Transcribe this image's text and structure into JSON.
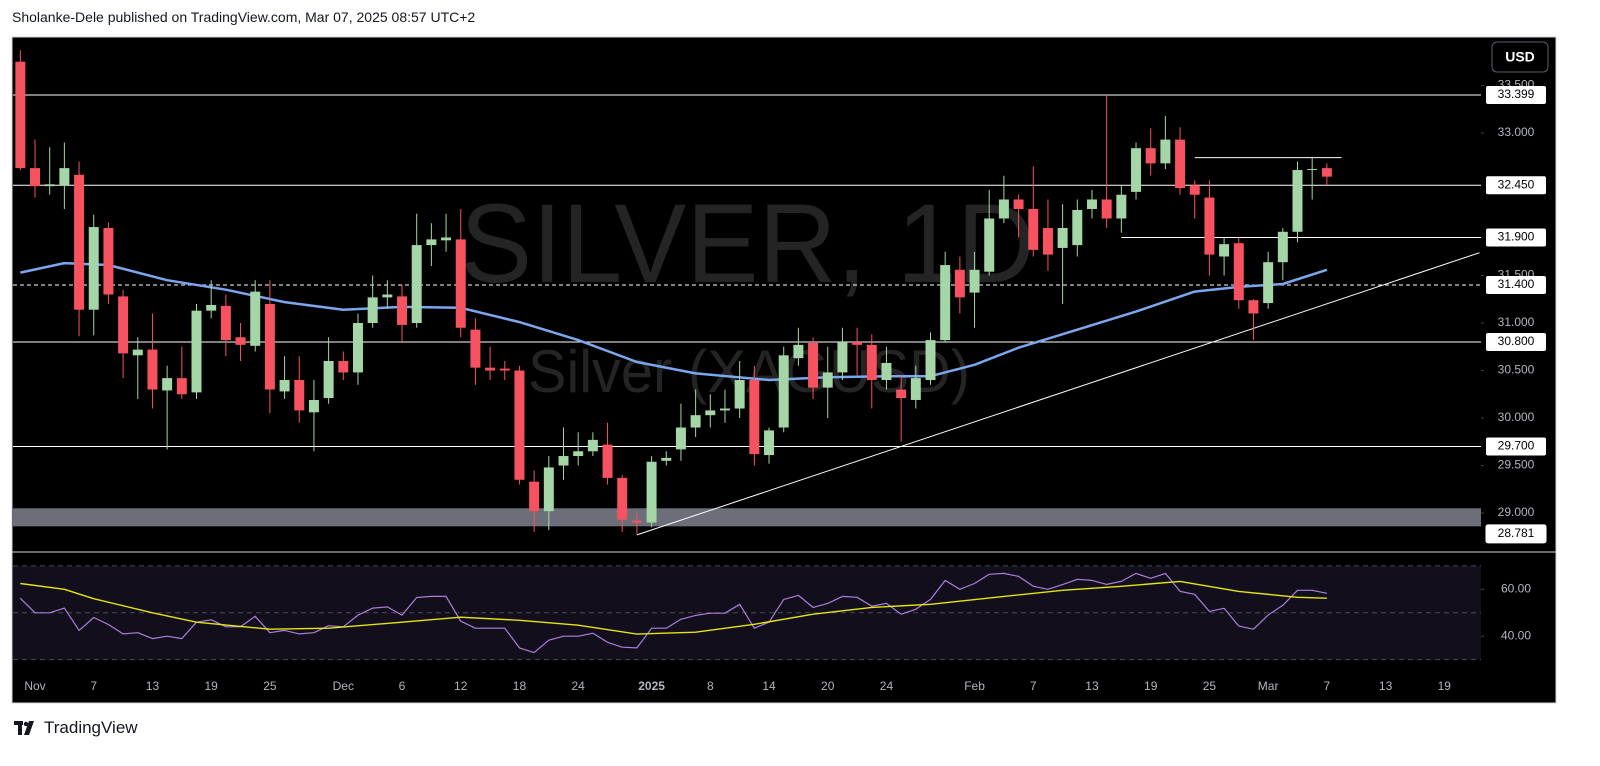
{
  "header": {
    "text": "Sholanke-Dele published on TradingView.com, Mar 07, 2025 08:57 UTC+2"
  },
  "footer": {
    "brand": "TradingView"
  },
  "currency_button": "USD",
  "chart_data": {
    "type": "candlestick",
    "watermark": {
      "title": "SILVER, 1D",
      "subtitle": "Silver (XAGUSD)"
    },
    "categories": [
      null,
      "Nov",
      null,
      null,
      null,
      "7",
      null,
      null,
      null,
      "13",
      null,
      null,
      null,
      "19",
      null,
      null,
      null,
      "25",
      null,
      null,
      null,
      null,
      "Dec",
      null,
      null,
      null,
      "6",
      null,
      null,
      null,
      "12",
      null,
      null,
      null,
      "18",
      null,
      null,
      null,
      "24",
      null,
      null,
      null,
      null,
      "2025",
      null,
      null,
      null,
      "8",
      null,
      null,
      null,
      "14",
      null,
      null,
      null,
      "20",
      null,
      null,
      null,
      "24",
      null,
      null,
      null,
      null,
      null,
      "Feb",
      null,
      null,
      null,
      "7",
      null,
      null,
      null,
      "13",
      null,
      null,
      null,
      "19",
      null,
      null,
      null,
      "25",
      null,
      null,
      null,
      "Mar",
      null,
      null,
      null,
      "7",
      null,
      null,
      null,
      "13",
      null,
      null,
      null,
      "19",
      null,
      null
    ],
    "open": [
      33.75,
      32.63,
      32.44,
      32.45,
      32.56,
      31.14,
      32.0,
      31.28,
      30.66,
      30.72,
      30.29,
      30.42,
      30.27,
      31.13,
      31.18,
      30.85,
      30.76,
      31.2,
      30.28,
      30.4,
      30.06,
      30.21,
      30.6,
      30.48,
      31.0,
      31.27,
      31.28,
      31.0,
      31.82,
      31.87,
      31.88,
      30.93,
      30.53,
      30.52,
      30.5,
      29.33,
      29.02,
      29.5,
      29.6,
      29.65,
      29.72,
      29.37,
      28.92,
      28.9,
      29.55,
      29.67,
      29.9,
      30.03,
      30.08,
      30.1,
      30.4,
      29.61,
      29.9,
      30.63,
      30.79,
      30.32,
      30.48,
      30.8,
      30.77,
      30.4,
      30.3,
      30.19,
      30.4,
      30.82,
      31.56,
      31.32,
      31.54,
      32.1,
      32.3,
      32.2,
      32.0,
      31.79,
      31.82,
      32.2,
      32.3,
      32.1,
      32.38,
      32.84,
      32.68,
      32.93,
      32.45,
      32.32,
      31.7,
      31.84,
      31.24,
      31.21,
      31.64,
      31.96,
      32.61,
      32.63,
      null,
      null,
      null,
      null,
      null,
      null,
      null,
      null,
      null,
      null
    ],
    "high": [
      33.87,
      32.93,
      32.85,
      32.9,
      32.7,
      32.14,
      32.06,
      31.35,
      30.85,
      31.1,
      30.55,
      30.75,
      31.2,
      31.45,
      31.3,
      31.0,
      31.45,
      31.45,
      30.65,
      30.65,
      30.4,
      30.85,
      30.7,
      31.1,
      31.5,
      31.45,
      31.4,
      32.15,
      32.05,
      32.15,
      32.2,
      31.05,
      30.75,
      30.6,
      30.55,
      29.45,
      29.6,
      29.9,
      29.85,
      29.85,
      29.95,
      29.4,
      29.0,
      29.6,
      29.65,
      30.15,
      30.3,
      30.25,
      30.3,
      30.6,
      30.55,
      29.9,
      30.75,
      30.95,
      30.85,
      30.75,
      30.95,
      30.95,
      30.88,
      30.75,
      30.45,
      30.55,
      30.9,
      31.75,
      31.7,
      31.75,
      32.4,
      32.55,
      32.35,
      32.65,
      32.3,
      32.25,
      32.3,
      32.4,
      33.4,
      32.45,
      32.9,
      33.05,
      33.18,
      33.06,
      32.5,
      32.5,
      31.9,
      31.9,
      31.25,
      31.75,
      32.0,
      32.7,
      32.75,
      32.68,
      null,
      null,
      null,
      null,
      null,
      null,
      null,
      null,
      null,
      null
    ],
    "low": [
      32.61,
      32.32,
      32.35,
      32.2,
      30.86,
      30.87,
      31.2,
      30.42,
      30.2,
      30.1,
      29.67,
      30.2,
      30.2,
      31.05,
      30.65,
      30.6,
      30.7,
      30.05,
      30.2,
      29.95,
      29.65,
      30.15,
      30.4,
      30.35,
      30.95,
      31.15,
      30.8,
      30.95,
      31.6,
      31.75,
      30.85,
      30.35,
      30.4,
      30.4,
      29.3,
      28.8,
      28.82,
      29.35,
      29.5,
      29.6,
      29.3,
      28.8,
      28.781,
      28.85,
      29.5,
      29.55,
      29.8,
      29.9,
      29.95,
      30.0,
      29.5,
      29.52,
      29.85,
      30.55,
      30.2,
      30.0,
      30.4,
      30.45,
      30.1,
      30.3,
      29.75,
      30.1,
      30.35,
      30.8,
      31.1,
      30.95,
      31.5,
      32.05,
      31.9,
      31.7,
      31.55,
      31.2,
      31.7,
      32.1,
      32.0,
      31.95,
      32.3,
      32.55,
      32.62,
      32.35,
      32.1,
      31.5,
      31.5,
      31.15,
      30.82,
      31.15,
      31.45,
      31.85,
      32.3,
      32.45,
      null,
      null,
      null,
      null,
      null,
      null,
      null,
      null,
      null,
      null
    ],
    "close": [
      32.63,
      32.44,
      32.46,
      32.63,
      31.14,
      32.01,
      31.3,
      30.68,
      30.72,
      30.3,
      30.42,
      30.25,
      31.13,
      31.19,
      30.82,
      30.77,
      31.33,
      30.3,
      30.4,
      30.08,
      30.19,
      30.6,
      30.48,
      31.0,
      31.27,
      31.3,
      30.98,
      31.82,
      31.88,
      31.9,
      30.95,
      30.53,
      30.5,
      30.5,
      29.35,
      29.02,
      29.48,
      29.6,
      29.65,
      29.77,
      29.37,
      28.93,
      28.9,
      29.54,
      29.58,
      29.9,
      30.03,
      30.08,
      30.1,
      30.4,
      29.62,
      29.87,
      30.66,
      30.77,
      30.32,
      30.48,
      30.8,
      30.77,
      30.4,
      30.58,
      30.21,
      30.42,
      30.82,
      31.61,
      31.27,
      31.56,
      32.1,
      32.3,
      32.2,
      31.77,
      31.72,
      32.0,
      32.19,
      32.3,
      32.1,
      32.35,
      32.84,
      32.68,
      32.93,
      32.42,
      32.35,
      31.72,
      31.83,
      31.24,
      31.1,
      31.64,
      31.96,
      32.61,
      32.62,
      32.54,
      null,
      null,
      null,
      null,
      null,
      null,
      null,
      null,
      null,
      null
    ],
    "up_color": "#a5d6a7",
    "down_color": "#f7525f",
    "ylim": [
      28.59,
      34.01
    ],
    "yticks": [
      {
        "value": 33.5,
        "label": "33.500"
      },
      {
        "value": 33,
        "label": "33.000"
      },
      {
        "value": 31.5,
        "label": "31.500"
      },
      {
        "value": 31,
        "label": "31.000"
      },
      {
        "value": 30.5,
        "label": "30.500"
      },
      {
        "value": 30,
        "label": "30.000"
      },
      {
        "value": 29.5,
        "label": "29.500"
      },
      {
        "value": 29,
        "label": "29.000"
      }
    ],
    "moving_average": {
      "color": "#7ba7ef",
      "x": [
        0,
        3,
        6,
        10,
        14,
        18,
        22,
        26,
        30,
        34,
        38,
        42,
        46,
        51,
        55,
        59,
        62,
        65,
        68,
        72,
        76,
        80,
        83,
        86,
        89
      ],
      "values": [
        31.53,
        31.63,
        31.61,
        31.45,
        31.35,
        31.22,
        31.14,
        31.17,
        31.16,
        31.01,
        30.82,
        30.59,
        30.47,
        30.4,
        30.43,
        30.44,
        30.44,
        30.56,
        30.74,
        30.93,
        31.12,
        31.33,
        31.38,
        31.41,
        31.56
      ]
    },
    "levels": [
      {
        "value": 33.399
      },
      {
        "value": 32.45,
        "label": "32.450"
      },
      {
        "value": 31.9,
        "label": "31.900",
        "from": 75
      },
      {
        "value": 31.4,
        "label": "31.400",
        "dashed": true
      },
      {
        "value": 30.8,
        "label": "30.800"
      },
      {
        "value": 29.7,
        "label": "29.700"
      }
    ],
    "price_labels": [
      28.781
    ],
    "trendlines": [
      {
        "x": [
          42,
          99.4
        ],
        "values": [
          28.77,
          31.74
        ]
      },
      {
        "x": [
          80,
          90
        ],
        "values": [
          32.74,
          32.74
        ]
      }
    ],
    "zones": [
      {
        "from": 28.86,
        "to": 29.05,
        "color": "#787b86"
      }
    ],
    "rsi": {
      "color": "#a97fdb",
      "values": [
        56.2,
        50,
        50,
        52,
        42.5,
        48,
        45,
        41,
        41.5,
        39,
        40,
        39,
        46,
        47,
        44,
        44,
        48.5,
        41.5,
        42.5,
        41,
        41.5,
        44.5,
        44,
        49,
        52,
        52.5,
        49,
        56.5,
        57,
        57,
        46.4,
        43.4,
        43.4,
        43.4,
        35,
        33,
        38.3,
        40,
        40,
        41.3,
        37.4,
        35.3,
        35,
        43.4,
        43.4,
        47.2,
        48.9,
        49.8,
        49.8,
        53.6,
        43.4,
        46,
        55.7,
        57.4,
        52.3,
        54,
        57,
        56.6,
        52.8,
        54,
        49.4,
        51.5,
        55.7,
        63.8,
        60,
        62.5,
        66.4,
        66.8,
        65.5,
        61.3,
        60,
        62,
        64.3,
        63.8,
        62.1,
        63.4,
        66.8,
        64.7,
        66.8,
        59.1,
        57.9,
        50.6,
        51.9,
        44.3,
        43,
        49,
        53.2,
        59.6,
        59.6,
        58.3,
        null,
        null,
        null,
        null,
        null,
        null,
        null,
        null,
        null,
        null
      ],
      "ylim": [
        29,
        75.5
      ],
      "yticks": [
        {
          "value": 60,
          "label": "60.00"
        },
        {
          "value": 40,
          "label": "40.00"
        }
      ],
      "bands": [
        70,
        50,
        30
      ],
      "signal": {
        "color": "#e5e510",
        "x": [
          0,
          3,
          5,
          9,
          12,
          17,
          21,
          26,
          30,
          34,
          38,
          42,
          46,
          50,
          54,
          58,
          62,
          67,
          71,
          75,
          79,
          83,
          87,
          89
        ],
        "values": [
          62.5,
          60,
          56,
          50,
          46,
          43,
          43.4,
          46,
          48.1,
          46.8,
          44.7,
          40.9,
          41.7,
          45.1,
          49.4,
          52.3,
          53.6,
          57,
          59.6,
          61.3,
          63.4,
          59.1,
          56.6,
          56.2
        ]
      }
    }
  }
}
